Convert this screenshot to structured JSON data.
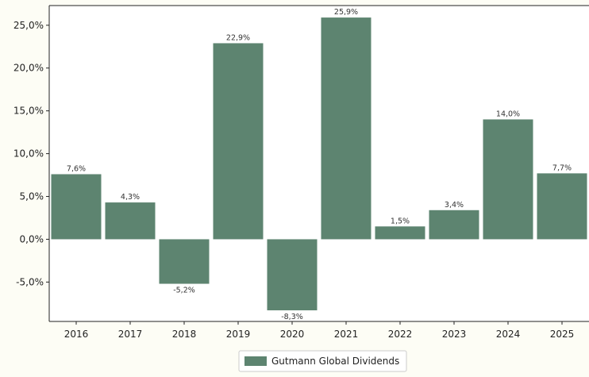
{
  "chart_data": {
    "type": "bar",
    "categories": [
      "2016",
      "2017",
      "2018",
      "2019",
      "2020",
      "2021",
      "2022",
      "2023",
      "2024",
      "2025"
    ],
    "series": [
      {
        "name": "Gutmann Global Dividends",
        "values": [
          7.6,
          4.3,
          -5.2,
          22.9,
          -8.3,
          25.9,
          1.5,
          3.4,
          14.0,
          7.7
        ],
        "labels": [
          "7,6%",
          "4,3%",
          "-5,2%",
          "22,9%",
          "-8,3%",
          "25,9%",
          "1,5%",
          "3,4%",
          "14,0%",
          "7,7%"
        ],
        "color": "#5d8470"
      }
    ],
    "y_ticks": [
      -5,
      0,
      5,
      10,
      15,
      20,
      25
    ],
    "y_tick_labels": [
      "-5,0%",
      "0,0%",
      "5,0%",
      "10,0%",
      "15,0%",
      "20,0%",
      "25,0%"
    ],
    "ylim": [
      -9.6,
      27.3
    ],
    "grid": false,
    "legend_position": "bottom-center",
    "title": "",
    "xlabel": "",
    "ylabel": ""
  }
}
